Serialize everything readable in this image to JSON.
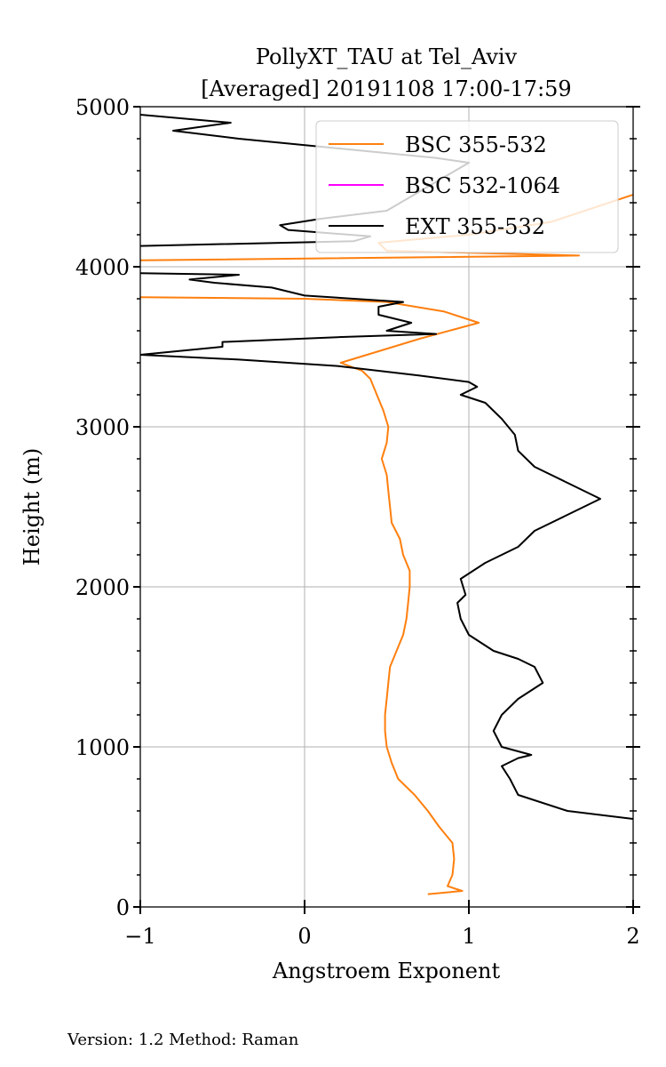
{
  "chart_data": {
    "type": "line",
    "title": [
      "PollyXT_TAU at Tel_Aviv",
      "[Averaged] 20191108 17:00-17:59"
    ],
    "xlabel": "Angstroem Exponent",
    "ylabel": "Height (m)",
    "xlim": [
      -1,
      2
    ],
    "ylim": [
      0,
      5000
    ],
    "x_ticks": [
      "−1",
      "0",
      "1",
      "2"
    ],
    "y_ticks": [
      "0",
      "1000",
      "2000",
      "3000",
      "4000",
      "5000"
    ],
    "grid": true,
    "legend_position": "upper-right",
    "series": [
      {
        "name": "BSC 355-532",
        "color": "#ff7f0e",
        "points": [
          [
            0.75,
            80
          ],
          [
            0.96,
            100
          ],
          [
            0.87,
            130
          ],
          [
            0.9,
            200
          ],
          [
            0.91,
            300
          ],
          [
            0.9,
            400
          ],
          [
            0.82,
            500
          ],
          [
            0.75,
            600
          ],
          [
            0.67,
            700
          ],
          [
            0.57,
            800
          ],
          [
            0.53,
            900
          ],
          [
            0.5,
            1000
          ],
          [
            0.49,
            1100
          ],
          [
            0.49,
            1200
          ],
          [
            0.5,
            1300
          ],
          [
            0.51,
            1400
          ],
          [
            0.52,
            1500
          ],
          [
            0.56,
            1600
          ],
          [
            0.6,
            1700
          ],
          [
            0.62,
            1800
          ],
          [
            0.63,
            1900
          ],
          [
            0.64,
            2000
          ],
          [
            0.64,
            2100
          ],
          [
            0.6,
            2200
          ],
          [
            0.58,
            2300
          ],
          [
            0.53,
            2400
          ],
          [
            0.51,
            2600
          ],
          [
            0.5,
            2700
          ],
          [
            0.47,
            2800
          ],
          [
            0.5,
            2900
          ],
          [
            0.51,
            3000
          ],
          [
            0.48,
            3100
          ],
          [
            0.44,
            3200
          ],
          [
            0.4,
            3300
          ],
          [
            0.35,
            3350
          ],
          [
            0.22,
            3400
          ],
          [
            0.7,
            3550
          ],
          [
            1.06,
            3650
          ],
          [
            0.85,
            3720
          ],
          [
            0.5,
            3780
          ],
          [
            0,
            3800
          ],
          [
            -1,
            3810
          ]
        ],
        "segments": [
          [
            [
              -1,
              4040
            ],
            [
              1.67,
              4070
            ],
            [
              0.5,
              4100
            ],
            [
              0.45,
              4150
            ],
            [
              1.0,
              4200
            ],
            [
              1.5,
              4280
            ],
            [
              2.0,
              4450
            ]
          ]
        ]
      },
      {
        "name": "BSC 532-1064",
        "color": "#ff00ff",
        "points": []
      },
      {
        "name": "EXT 355-532",
        "color": "#000000",
        "points": [
          [
            2.0,
            550
          ],
          [
            1.6,
            600
          ],
          [
            1.3,
            700
          ],
          [
            1.25,
            800
          ],
          [
            1.2,
            880
          ],
          [
            1.3,
            930
          ],
          [
            1.38,
            950
          ],
          [
            1.2,
            1000
          ],
          [
            1.15,
            1100
          ],
          [
            1.2,
            1200
          ],
          [
            1.3,
            1300
          ],
          [
            1.45,
            1400
          ],
          [
            1.4,
            1500
          ],
          [
            1.3,
            1550
          ],
          [
            1.15,
            1600
          ],
          [
            1.0,
            1700
          ],
          [
            0.95,
            1800
          ],
          [
            0.93,
            1900
          ],
          [
            0.98,
            1950
          ],
          [
            0.95,
            2050
          ],
          [
            1.1,
            2150
          ],
          [
            1.3,
            2250
          ],
          [
            1.4,
            2350
          ],
          [
            1.6,
            2450
          ],
          [
            1.8,
            2550
          ],
          [
            1.6,
            2650
          ],
          [
            1.4,
            2750
          ],
          [
            1.3,
            2850
          ],
          [
            1.28,
            2950
          ],
          [
            1.2,
            3050
          ],
          [
            1.1,
            3150
          ],
          [
            0.95,
            3200
          ],
          [
            1.05,
            3250
          ],
          [
            1.0,
            3280
          ],
          [
            0.7,
            3320
          ],
          [
            0.2,
            3380
          ],
          [
            -0.4,
            3420
          ],
          [
            -1.0,
            3450
          ],
          [
            -0.5,
            3500
          ],
          [
            -0.5,
            3530
          ],
          [
            0.2,
            3560
          ],
          [
            0.8,
            3580
          ],
          [
            0.5,
            3600
          ],
          [
            0.65,
            3650
          ],
          [
            0.45,
            3700
          ],
          [
            0.45,
            3750
          ],
          [
            0.6,
            3780
          ],
          [
            0.0,
            3820
          ],
          [
            -0.2,
            3870
          ],
          [
            -0.55,
            3900
          ],
          [
            -0.7,
            3920
          ],
          [
            -0.4,
            3950
          ],
          [
            -1.0,
            3960
          ]
        ],
        "segments": [
          [
            [
              -1,
              4130
            ],
            [
              0.3,
              4160
            ],
            [
              0.4,
              4190
            ],
            [
              -0.1,
              4230
            ],
            [
              -0.15,
              4260
            ],
            [
              0.1,
              4300
            ],
            [
              0.5,
              4350
            ],
            [
              1.0,
              4650
            ],
            [
              0.8,
              4680
            ],
            [
              -0.4,
              4800
            ],
            [
              -0.8,
              4850
            ],
            [
              -0.45,
              4900
            ],
            [
              -1.0,
              4950
            ]
          ]
        ]
      }
    ]
  },
  "footer": {
    "text": "Version: 1.2  Method: Raman"
  }
}
